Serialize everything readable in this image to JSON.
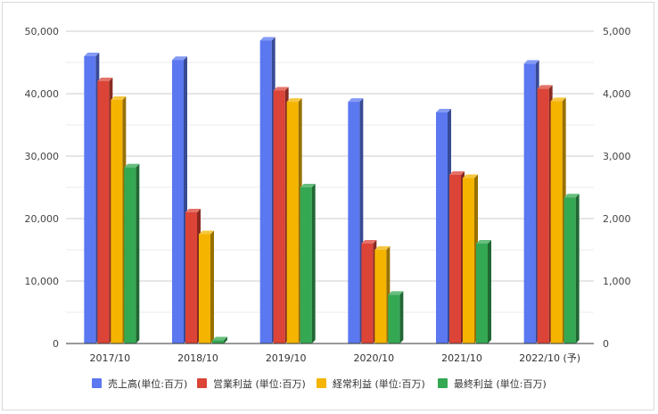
{
  "chart_data": {
    "type": "bar",
    "categories": [
      "2017/10",
      "2018/10",
      "2019/10",
      "2020/10",
      "2021/10",
      "2022/10 (予)"
    ],
    "series": [
      {
        "name": "売上高(単位:百万)",
        "axis": "left",
        "color": "#5b78f0",
        "values": [
          46000,
          45400,
          48500,
          38700,
          37000,
          44800
        ]
      },
      {
        "name": "営業利益 (単位:百万)",
        "axis": "right",
        "color": "#db4437",
        "values": [
          4200,
          2100,
          4050,
          1600,
          2700,
          4080
        ]
      },
      {
        "name": "経常利益 (単位:百万)",
        "axis": "right",
        "color": "#f4b400",
        "values": [
          3900,
          1750,
          3870,
          1500,
          2650,
          3880
        ]
      },
      {
        "name": "最終利益 (単位:百万)",
        "axis": "right",
        "color": "#34a853",
        "values": [
          2820,
          50,
          2500,
          780,
          1600,
          2340
        ]
      }
    ],
    "y_left": {
      "ylim": [
        0,
        50000
      ],
      "ticks": [
        "0",
        "10,000",
        "20,000",
        "30,000",
        "40,000",
        "50,000"
      ]
    },
    "y_right": {
      "ylim": [
        0,
        5000
      ],
      "ticks": [
        "0",
        "1,000",
        "2,000",
        "3,000",
        "4,000",
        "5,000"
      ]
    },
    "grid": true,
    "legend": "bottom"
  }
}
